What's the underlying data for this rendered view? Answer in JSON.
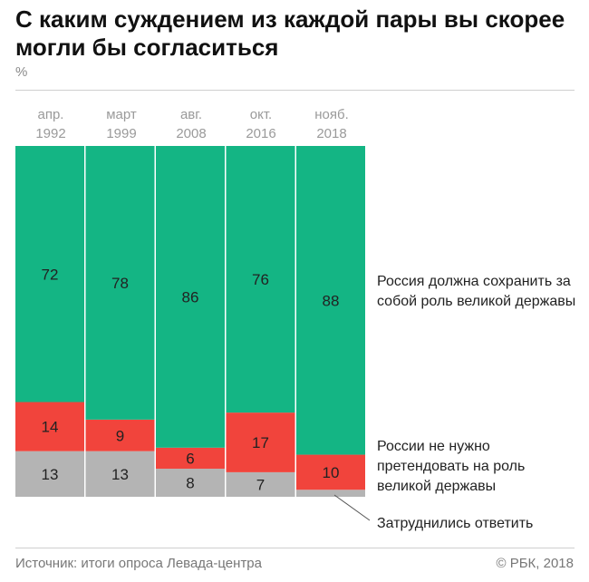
{
  "title": "С каким суждением из каждой пары вы скорее могли бы согласиться",
  "unit": "%",
  "periods": [
    {
      "month": "апр.",
      "year": "1992"
    },
    {
      "month": "март",
      "year": "1999"
    },
    {
      "month": "авг.",
      "year": "2008"
    },
    {
      "month": "окт.",
      "year": "2016"
    },
    {
      "month": "нояб.",
      "year": "2018"
    }
  ],
  "legend": {
    "great_power": "Россия должна сохранить за собой роль великой державы",
    "no_need": "России не нужно претендовать на роль великой державы",
    "undecided": "Затруднились ответить"
  },
  "footer": {
    "source": "Источник: итоги опроса Левада-центра",
    "copyright": "© РБК, 2018"
  },
  "colors": {
    "great_power": "#14b584",
    "no_need": "#f1443c",
    "undecided": "#b4b4b4",
    "label_text": "#222222"
  },
  "chart_data": {
    "type": "bar",
    "stacked": true,
    "categories": [
      "апр. 1992",
      "март 1999",
      "авг. 2008",
      "окт. 2016",
      "нояб. 2018"
    ],
    "series": [
      {
        "name": "Затруднились ответить",
        "values": [
          13,
          13,
          8,
          7,
          2
        ]
      },
      {
        "name": "России не нужно претендовать на роль великой державы",
        "values": [
          14,
          9,
          6,
          17,
          10
        ]
      },
      {
        "name": "Россия должна сохранить за собой роль великой державы",
        "values": [
          72,
          78,
          86,
          76,
          88
        ]
      }
    ],
    "labels_shown": [
      [
        "13",
        "13",
        "8",
        "7",
        ""
      ],
      [
        "14",
        "9",
        "6",
        "17",
        "10"
      ],
      [
        "72",
        "78",
        "86",
        "76",
        "88"
      ]
    ],
    "ylim": [
      0,
      100
    ],
    "legend_position": "right"
  }
}
